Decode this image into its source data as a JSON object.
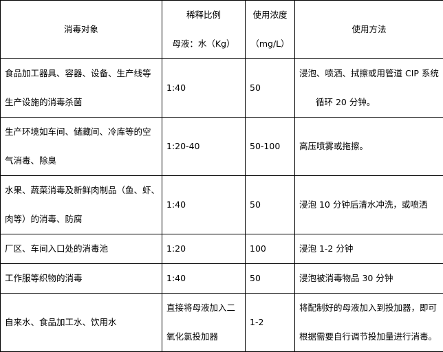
{
  "header": {
    "target": "消毒对象",
    "ratio_lines": [
      "稀释比例",
      "母液：水（Kg）"
    ],
    "concentration_lines": [
      "使用浓度",
      "（mg/L）"
    ],
    "method": "使用方法"
  },
  "rows": [
    {
      "target": [
        "食品加工器具、容器、设备、生产线等",
        "生产设施的消毒杀菌"
      ],
      "ratio": [
        "1:40"
      ],
      "concentration": "50",
      "method": [
        "浸泡、喷洒、拭擦或用管道 CIP 系统",
        "循环 20 分钟。"
      ]
    },
    {
      "target": [
        "生产环境如车间、储藏间、冷库等的空",
        "气消毒、除臭"
      ],
      "ratio": [
        "1:20-40"
      ],
      "concentration": "50-100",
      "method": [
        "高压喷雾或拖擦。"
      ]
    },
    {
      "target": [
        "水果、蔬菜消毒及新鲜肉制品（鱼、虾、",
        "肉等）的消毒、防腐"
      ],
      "ratio": [
        "1:40"
      ],
      "concentration": "50",
      "method": [
        "浸泡 10 分钟后清水冲洗，或喷洒"
      ]
    },
    {
      "target": [
        "厂区、车间入口处的消毒池"
      ],
      "ratio": [
        "1:20"
      ],
      "concentration": "100",
      "method": [
        "浸泡 1-2 分钟"
      ]
    },
    {
      "target": [
        "工作服等织物的消毒"
      ],
      "ratio": [
        "1:40"
      ],
      "concentration": "50",
      "method": [
        "浸泡被消毒物品 30 分钟"
      ]
    },
    {
      "target": [
        "自来水、食品加工水、饮用水"
      ],
      "ratio": [
        "直接将母液加入二",
        "氧化氯投加器"
      ],
      "concentration": "1-2",
      "method": [
        "将配制好的母液加入到投加器，即可",
        "根据需要自行调节投加量进行消毒。"
      ]
    }
  ]
}
